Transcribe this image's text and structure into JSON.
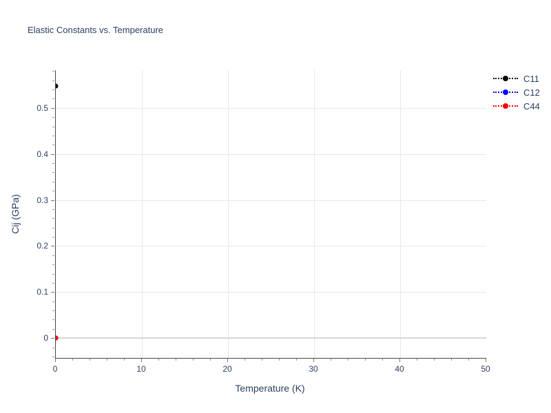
{
  "title": "Elastic Constants vs. Temperature",
  "colors": {
    "text": "#2a3f5f",
    "axis_line": "#444444",
    "grid": "#e8e8e8",
    "zeroline": "#d6d6d6",
    "background": "#ffffff",
    "c11": "#000000",
    "c12": "#0000ff",
    "c44": "#ff0000"
  },
  "chart_data": {
    "type": "scatter",
    "title": "Elastic Constants vs. Temperature",
    "xlabel": "Temperature (K)",
    "ylabel": "Cij (GPa)",
    "x": [
      0
    ],
    "series": [
      {
        "name": "C11",
        "color": "#000000",
        "values": [
          0.548
        ],
        "line_style": "dot",
        "marker": "circle"
      },
      {
        "name": "C12",
        "color": "#0000ff",
        "values": [
          0.0
        ],
        "line_style": "dot",
        "marker": "circle"
      },
      {
        "name": "C44",
        "color": "#ff0000",
        "values": [
          0.0
        ],
        "line_style": "dot",
        "marker": "circle"
      }
    ],
    "xlim": [
      0,
      50
    ],
    "ylim": [
      -0.043,
      0.582
    ],
    "x_major_ticks": [
      0,
      10,
      20,
      30,
      40,
      50
    ],
    "x_tick_labels": [
      "0",
      "10",
      "20",
      "30",
      "40",
      "50"
    ],
    "x_minor_step": 2,
    "y_major_ticks": [
      0,
      0.1,
      0.2,
      0.3,
      0.4,
      0.5
    ],
    "y_tick_labels": [
      "0",
      "0.1",
      "0.2",
      "0.3",
      "0.4",
      "0.5"
    ],
    "y_minor_step": 0.02,
    "grid": true,
    "legend_position": "outside-top-right"
  },
  "legend": {
    "items": [
      {
        "label": "C11",
        "color": "#000000"
      },
      {
        "label": "C12",
        "color": "#0000ff"
      },
      {
        "label": "C44",
        "color": "#ff0000"
      }
    ]
  }
}
